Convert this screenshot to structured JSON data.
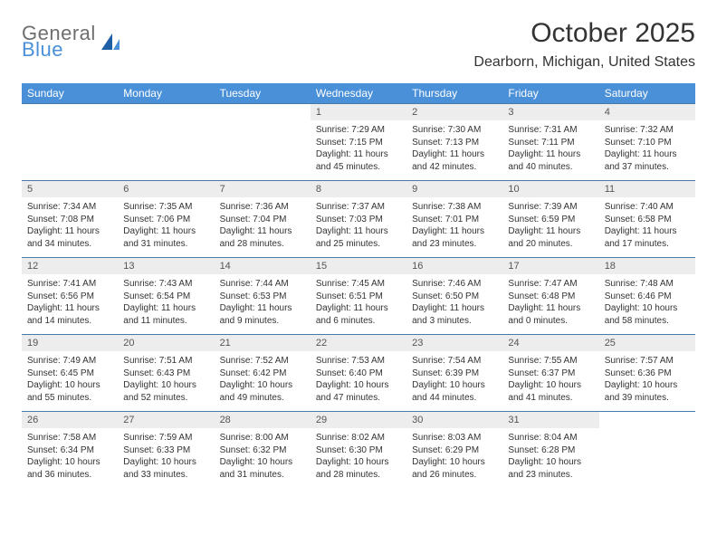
{
  "logo": {
    "top": "General",
    "bottom": "Blue"
  },
  "title": "October 2025",
  "location": "Dearborn, Michigan, United States",
  "colors": {
    "header_bg": "#4a90d9",
    "header_fg": "#ffffff",
    "rule": "#4a7aa8",
    "daynum_bg": "#ededed",
    "logo_gray": "#6e6e6e",
    "logo_blue": "#4a90d9"
  },
  "day_headers": [
    "Sunday",
    "Monday",
    "Tuesday",
    "Wednesday",
    "Thursday",
    "Friday",
    "Saturday"
  ],
  "weeks": [
    [
      null,
      null,
      null,
      {
        "n": "1",
        "rise": "7:29 AM",
        "set": "7:15 PM",
        "dl": "11 hours and 45 minutes."
      },
      {
        "n": "2",
        "rise": "7:30 AM",
        "set": "7:13 PM",
        "dl": "11 hours and 42 minutes."
      },
      {
        "n": "3",
        "rise": "7:31 AM",
        "set": "7:11 PM",
        "dl": "11 hours and 40 minutes."
      },
      {
        "n": "4",
        "rise": "7:32 AM",
        "set": "7:10 PM",
        "dl": "11 hours and 37 minutes."
      }
    ],
    [
      {
        "n": "5",
        "rise": "7:34 AM",
        "set": "7:08 PM",
        "dl": "11 hours and 34 minutes."
      },
      {
        "n": "6",
        "rise": "7:35 AM",
        "set": "7:06 PM",
        "dl": "11 hours and 31 minutes."
      },
      {
        "n": "7",
        "rise": "7:36 AM",
        "set": "7:04 PM",
        "dl": "11 hours and 28 minutes."
      },
      {
        "n": "8",
        "rise": "7:37 AM",
        "set": "7:03 PM",
        "dl": "11 hours and 25 minutes."
      },
      {
        "n": "9",
        "rise": "7:38 AM",
        "set": "7:01 PM",
        "dl": "11 hours and 23 minutes."
      },
      {
        "n": "10",
        "rise": "7:39 AM",
        "set": "6:59 PM",
        "dl": "11 hours and 20 minutes."
      },
      {
        "n": "11",
        "rise": "7:40 AM",
        "set": "6:58 PM",
        "dl": "11 hours and 17 minutes."
      }
    ],
    [
      {
        "n": "12",
        "rise": "7:41 AM",
        "set": "6:56 PM",
        "dl": "11 hours and 14 minutes."
      },
      {
        "n": "13",
        "rise": "7:43 AM",
        "set": "6:54 PM",
        "dl": "11 hours and 11 minutes."
      },
      {
        "n": "14",
        "rise": "7:44 AM",
        "set": "6:53 PM",
        "dl": "11 hours and 9 minutes."
      },
      {
        "n": "15",
        "rise": "7:45 AM",
        "set": "6:51 PM",
        "dl": "11 hours and 6 minutes."
      },
      {
        "n": "16",
        "rise": "7:46 AM",
        "set": "6:50 PM",
        "dl": "11 hours and 3 minutes."
      },
      {
        "n": "17",
        "rise": "7:47 AM",
        "set": "6:48 PM",
        "dl": "11 hours and 0 minutes."
      },
      {
        "n": "18",
        "rise": "7:48 AM",
        "set": "6:46 PM",
        "dl": "10 hours and 58 minutes."
      }
    ],
    [
      {
        "n": "19",
        "rise": "7:49 AM",
        "set": "6:45 PM",
        "dl": "10 hours and 55 minutes."
      },
      {
        "n": "20",
        "rise": "7:51 AM",
        "set": "6:43 PM",
        "dl": "10 hours and 52 minutes."
      },
      {
        "n": "21",
        "rise": "7:52 AM",
        "set": "6:42 PM",
        "dl": "10 hours and 49 minutes."
      },
      {
        "n": "22",
        "rise": "7:53 AM",
        "set": "6:40 PM",
        "dl": "10 hours and 47 minutes."
      },
      {
        "n": "23",
        "rise": "7:54 AM",
        "set": "6:39 PM",
        "dl": "10 hours and 44 minutes."
      },
      {
        "n": "24",
        "rise": "7:55 AM",
        "set": "6:37 PM",
        "dl": "10 hours and 41 minutes."
      },
      {
        "n": "25",
        "rise": "7:57 AM",
        "set": "6:36 PM",
        "dl": "10 hours and 39 minutes."
      }
    ],
    [
      {
        "n": "26",
        "rise": "7:58 AM",
        "set": "6:34 PM",
        "dl": "10 hours and 36 minutes."
      },
      {
        "n": "27",
        "rise": "7:59 AM",
        "set": "6:33 PM",
        "dl": "10 hours and 33 minutes."
      },
      {
        "n": "28",
        "rise": "8:00 AM",
        "set": "6:32 PM",
        "dl": "10 hours and 31 minutes."
      },
      {
        "n": "29",
        "rise": "8:02 AM",
        "set": "6:30 PM",
        "dl": "10 hours and 28 minutes."
      },
      {
        "n": "30",
        "rise": "8:03 AM",
        "set": "6:29 PM",
        "dl": "10 hours and 26 minutes."
      },
      {
        "n": "31",
        "rise": "8:04 AM",
        "set": "6:28 PM",
        "dl": "10 hours and 23 minutes."
      },
      null
    ]
  ],
  "labels": {
    "sunrise": "Sunrise:",
    "sunset": "Sunset:",
    "daylight": "Daylight:"
  }
}
